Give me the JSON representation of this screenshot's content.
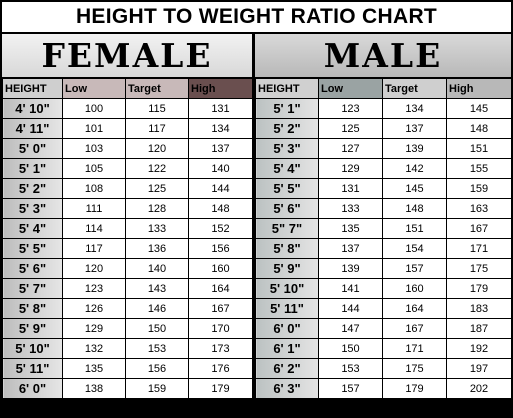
{
  "title": "HEIGHT TO WEIGHT RATIO CHART",
  "female": {
    "label": "FEMALE",
    "columns": [
      "HEIGHT",
      "Low",
      "Target",
      "High"
    ],
    "rows": [
      [
        "4' 10\"",
        "100",
        "115",
        "131"
      ],
      [
        "4' 11\"",
        "101",
        "117",
        "134"
      ],
      [
        "5' 0\"",
        "103",
        "120",
        "137"
      ],
      [
        "5' 1\"",
        "105",
        "122",
        "140"
      ],
      [
        "5' 2\"",
        "108",
        "125",
        "144"
      ],
      [
        "5' 3\"",
        "111",
        "128",
        "148"
      ],
      [
        "5' 4\"",
        "114",
        "133",
        "152"
      ],
      [
        "5' 5\"",
        "117",
        "136",
        "156"
      ],
      [
        "5' 6\"",
        "120",
        "140",
        "160"
      ],
      [
        "5' 7\"",
        "123",
        "143",
        "164"
      ],
      [
        "5' 8\"",
        "126",
        "146",
        "167"
      ],
      [
        "5' 9\"",
        "129",
        "150",
        "170"
      ],
      [
        "5' 10\"",
        "132",
        "153",
        "173"
      ],
      [
        "5' 11\"",
        "135",
        "156",
        "176"
      ],
      [
        "6' 0\"",
        "138",
        "159",
        "179"
      ]
    ]
  },
  "male": {
    "label": "MALE",
    "columns": [
      "HEIGHT",
      "Low",
      "Target",
      "High"
    ],
    "rows": [
      [
        "5' 1\"",
        "123",
        "134",
        "145"
      ],
      [
        "5' 2\"",
        "125",
        "137",
        "148"
      ],
      [
        "5' 3\"",
        "127",
        "139",
        "151"
      ],
      [
        "5' 4\"",
        "129",
        "142",
        "155"
      ],
      [
        "5' 5\"",
        "131",
        "145",
        "159"
      ],
      [
        "5' 6\"",
        "133",
        "148",
        "163"
      ],
      [
        "5\" 7\"",
        "135",
        "151",
        "167"
      ],
      [
        "5' 8\"",
        "137",
        "154",
        "171"
      ],
      [
        "5' 9\"",
        "139",
        "157",
        "175"
      ],
      [
        "5' 10\"",
        "141",
        "160",
        "179"
      ],
      [
        "5' 11\"",
        "144",
        "164",
        "183"
      ],
      [
        "6' 0\"",
        "147",
        "167",
        "187"
      ],
      [
        "6' 1\"",
        "150",
        "171",
        "192"
      ],
      [
        "6' 2\"",
        "153",
        "175",
        "197"
      ],
      [
        "6' 3\"",
        "157",
        "179",
        "202"
      ]
    ]
  }
}
